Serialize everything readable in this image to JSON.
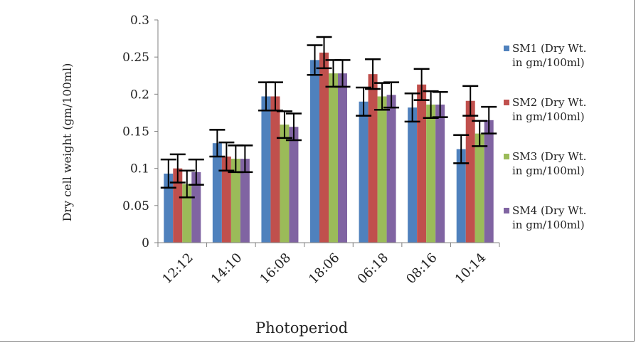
{
  "chart_data": {
    "type": "bar",
    "title": "",
    "xlabel": "Photoperiod",
    "ylabel": "Dry cell weight (gm/100ml)",
    "ylim": [
      0,
      0.3
    ],
    "yticks": [
      "0",
      "0.05",
      "0.1",
      "0.15",
      "0.2",
      "0.25",
      "0.3"
    ],
    "grid": false,
    "legend_position": "right",
    "categories": [
      "12:12",
      "14:10",
      "16:08",
      "18:06",
      "06:18",
      "08:16",
      "10:14"
    ],
    "series": [
      {
        "name": "SM1 (Dry Wt. in gm/100ml)",
        "color": "#4f81bd",
        "values": [
          0.093,
          0.134,
          0.197,
          0.246,
          0.19,
          0.182,
          0.126
        ],
        "errors": [
          0.019,
          0.018,
          0.019,
          0.02,
          0.019,
          0.019,
          0.019
        ]
      },
      {
        "name": "SM2 (Dry Wt. in gm/100ml)",
        "color": "#c0504d",
        "values": [
          0.1,
          0.116,
          0.197,
          0.256,
          0.227,
          0.213,
          0.191
        ],
        "errors": [
          0.019,
          0.019,
          0.019,
          0.021,
          0.02,
          0.021,
          0.02
        ]
      },
      {
        "name": "SM3 (Dry Wt. in gm/100ml)",
        "color": "#9bbb59",
        "values": [
          0.079,
          0.113,
          0.159,
          0.228,
          0.197,
          0.186,
          0.147
        ],
        "errors": [
          0.018,
          0.018,
          0.018,
          0.018,
          0.018,
          0.018,
          0.017
        ]
      },
      {
        "name": "SM4 (Dry Wt. in gm/100ml)",
        "color": "#8064a2",
        "values": [
          0.095,
          0.113,
          0.156,
          0.228,
          0.199,
          0.186,
          0.165
        ],
        "errors": [
          0.017,
          0.018,
          0.018,
          0.018,
          0.017,
          0.017,
          0.018
        ]
      }
    ]
  }
}
